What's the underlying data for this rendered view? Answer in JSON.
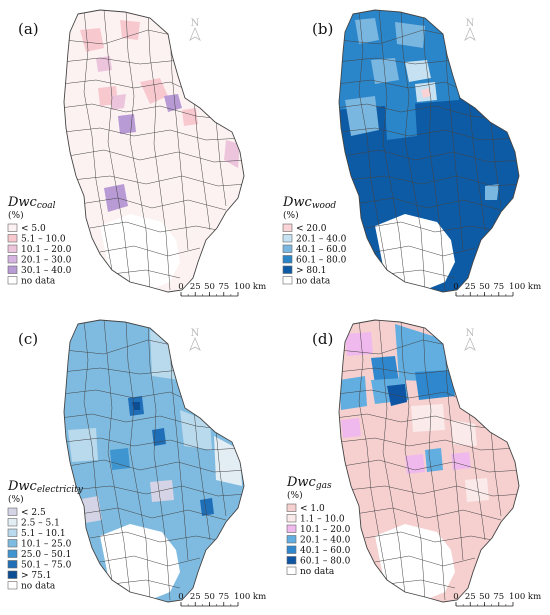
{
  "north_label": "N",
  "scale": {
    "ticks": [
      "0",
      "25",
      "50",
      "75",
      "100 km"
    ]
  },
  "panels": [
    {
      "letter": "(a)",
      "legend_title_main": "Dwc",
      "legend_title_sub": "coal",
      "unit": "(%)",
      "classes": [
        {
          "label": "< 5.0",
          "color": "#fdf2f2"
        },
        {
          "label": "5.1 – 10.0",
          "color": "#f7c9cf"
        },
        {
          "label": "10.1 – 20.0",
          "color": "#ecc5dd"
        },
        {
          "label": "20.1 – 30.0",
          "color": "#d6b4e2"
        },
        {
          "label": "30.1 – 40.0",
          "color": "#b89ad4"
        },
        {
          "label": "no data",
          "color": "#ffffff"
        }
      ]
    },
    {
      "letter": "(b)",
      "legend_title_main": "Dwc",
      "legend_title_sub": "wood",
      "unit": "(%)",
      "classes": [
        {
          "label": "< 20.0",
          "color": "#f9d3d6"
        },
        {
          "label": "20.1 – 40.0",
          "color": "#c5e1f2"
        },
        {
          "label": "40.1 – 60.0",
          "color": "#7ab7e0"
        },
        {
          "label": "60.1 – 80.0",
          "color": "#2a85c9"
        },
        {
          "label": "> 80.1",
          "color": "#0d5aa5"
        },
        {
          "label": "no data",
          "color": "#ffffff"
        }
      ]
    },
    {
      "letter": "(c)",
      "legend_title_main": "Dwc",
      "legend_title_sub": "electricity",
      "unit": "(%)",
      "classes": [
        {
          "label": "< 2.5",
          "color": "#d4d4e6"
        },
        {
          "label": "2.5 – 5.1",
          "color": "#e2eef4"
        },
        {
          "label": "5.1 – 10.1",
          "color": "#b9d9ec"
        },
        {
          "label": "10.1 – 25.0",
          "color": "#7fbbe0"
        },
        {
          "label": "25.0 – 50.1",
          "color": "#3f95d0"
        },
        {
          "label": "50.1 – 75.0",
          "color": "#1f6fb8"
        },
        {
          "label": "> 75.1",
          "color": "#0c4d93"
        },
        {
          "label": "no data",
          "color": "#ffffff"
        }
      ]
    },
    {
      "letter": "(d)",
      "legend_title_main": "Dwc",
      "legend_title_sub": "gas",
      "unit": "(%)",
      "classes": [
        {
          "label": "< 1.0",
          "color": "#f6cfcf"
        },
        {
          "label": "1.1 – 10.0",
          "color": "#fbeaea"
        },
        {
          "label": "10.1 – 20.0",
          "color": "#f0b9ee"
        },
        {
          "label": "20.1 – 40.0",
          "color": "#62aee0"
        },
        {
          "label": "40.1 – 60.0",
          "color": "#2f88cd"
        },
        {
          "label": "60.1 – 80.0",
          "color": "#0e55a4"
        },
        {
          "label": "no data",
          "color": "#ffffff"
        }
      ]
    }
  ]
}
